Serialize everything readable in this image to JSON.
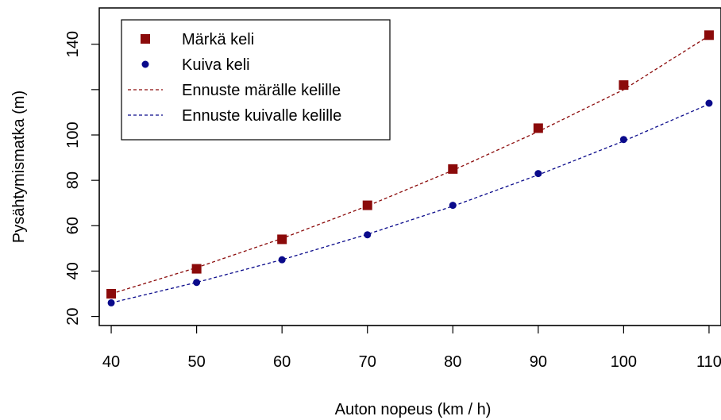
{
  "chart_data": {
    "type": "scatter",
    "title": "",
    "xlabel": "Auton nopeus (km / h)",
    "ylabel": "Pysähtymismatka (m)",
    "xlim": [
      38.6,
      111.4
    ],
    "ylim": [
      16,
      156
    ],
    "xticks": [
      40,
      50,
      60,
      70,
      80,
      90,
      100,
      110
    ],
    "yticks": [
      20,
      40,
      60,
      80,
      100,
      140
    ],
    "grid": false,
    "legend_position": "top-left",
    "x": [
      40,
      50,
      60,
      70,
      80,
      90,
      100,
      110
    ],
    "series": [
      {
        "name": "Märkä keli",
        "kind": "points",
        "marker": "square",
        "color": "#8b0a0a",
        "values": [
          30,
          41,
          54,
          69,
          85,
          103,
          122,
          144
        ]
      },
      {
        "name": "Kuiva keli",
        "kind": "points",
        "marker": "circle",
        "color": "#0a0a8b",
        "values": [
          26,
          35,
          45,
          56,
          69,
          83,
          98,
          114
        ]
      },
      {
        "name": "Ennuste märälle kelille",
        "kind": "dashed-line",
        "color": "#8b0a0a",
        "values": [
          30,
          41.5,
          54.4,
          68.7,
          84.4,
          101.5,
          120,
          143.7
        ]
      },
      {
        "name": "Ennuste kuivalle kelille",
        "kind": "dashed-line",
        "color": "#0a0a8b",
        "values": [
          26,
          35,
          45,
          56.2,
          68.6,
          82.4,
          97.3,
          113.6
        ]
      }
    ]
  }
}
